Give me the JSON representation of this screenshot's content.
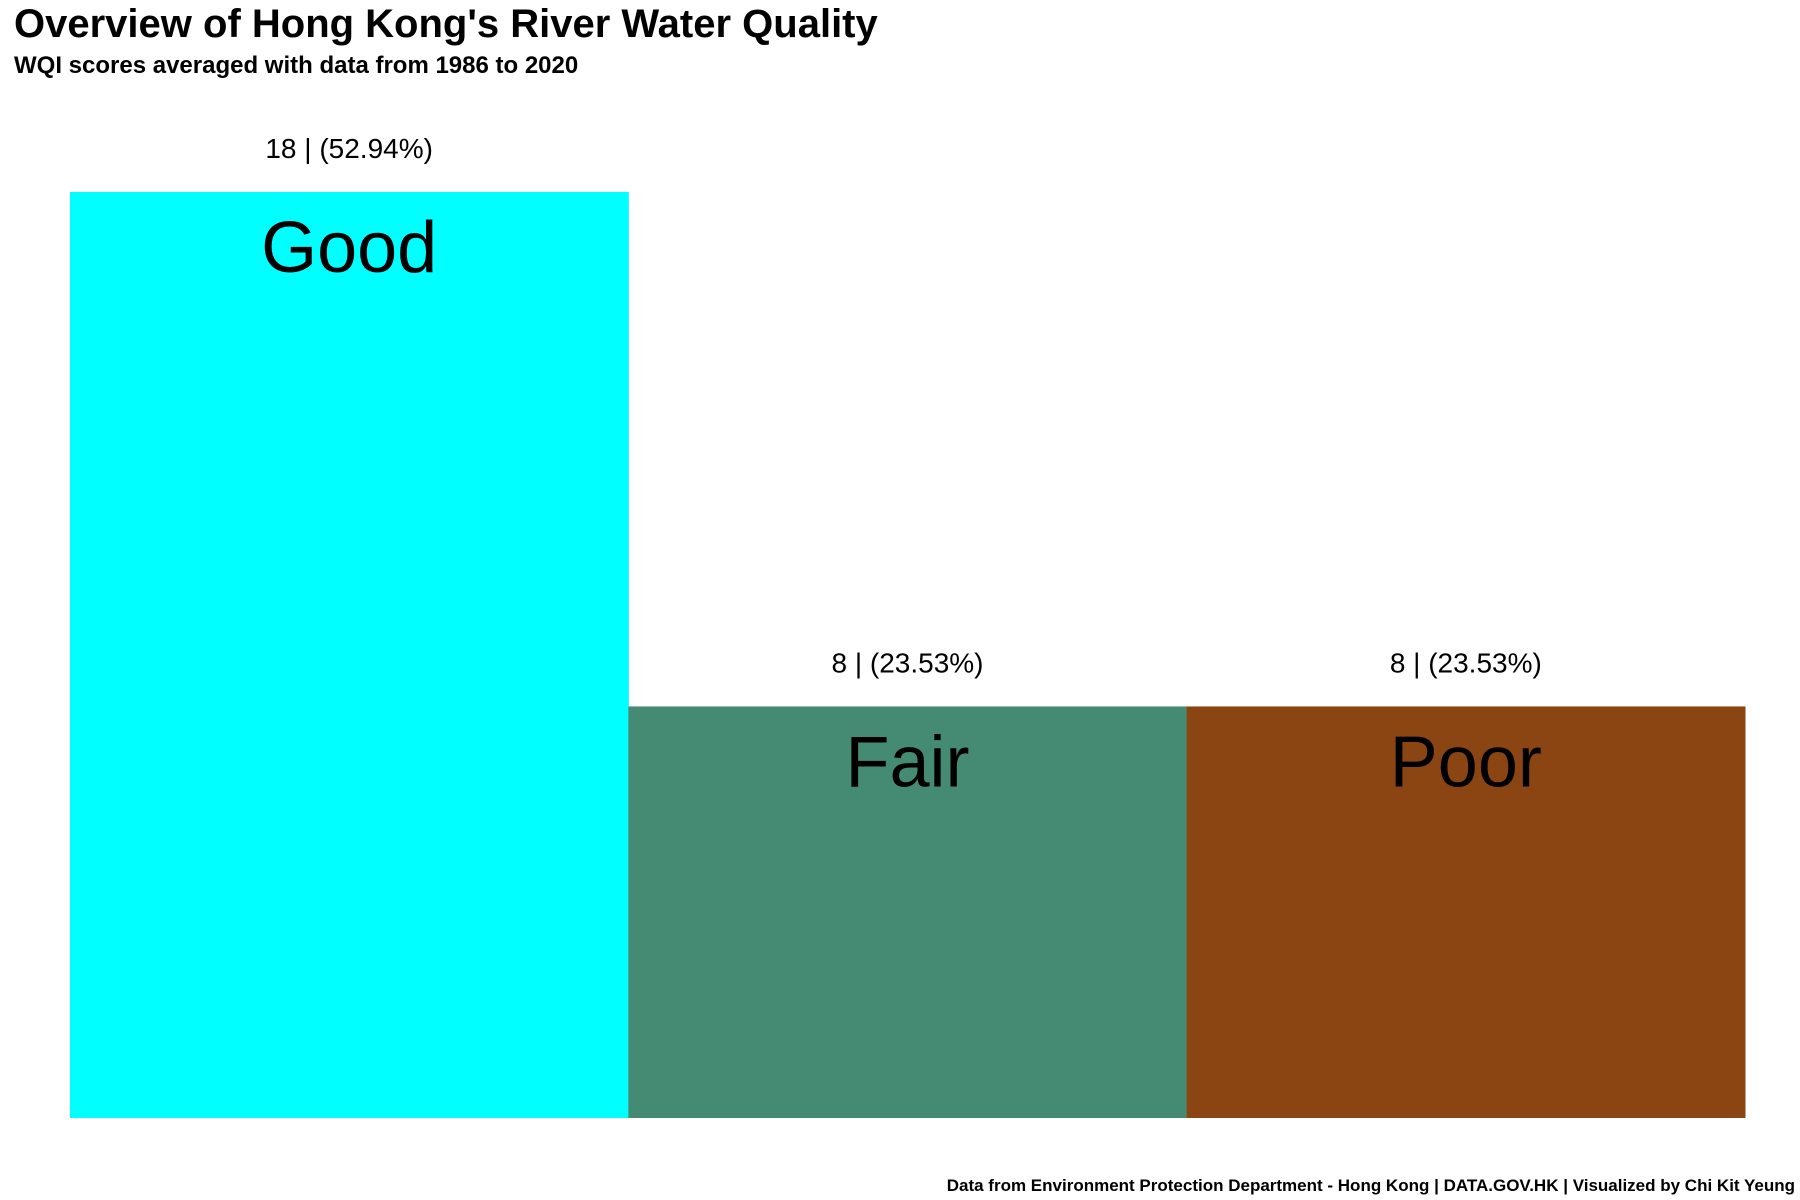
{
  "chart_data": {
    "type": "bar",
    "title": "Overview of Hong Kong's River Water Quality",
    "subtitle": "WQI scores averaged with data from 1986 to 2020",
    "caption": "Data from Environment Protection Department - Hong Kong | DATA.GOV.HK | Visualized by Chi Kit Yeung",
    "categories": [
      "Good",
      "Fair",
      "Poor"
    ],
    "values": [
      18,
      8,
      8
    ],
    "value_labels": [
      "18 | (52.94%)",
      "8 | (23.53%)",
      "8 | (23.53%)"
    ],
    "colors": [
      "#00ffff",
      "#458b74",
      "#8b4513"
    ],
    "ylim": [
      0,
      18
    ],
    "grid": false,
    "legend": "none",
    "axes_visible": false
  }
}
